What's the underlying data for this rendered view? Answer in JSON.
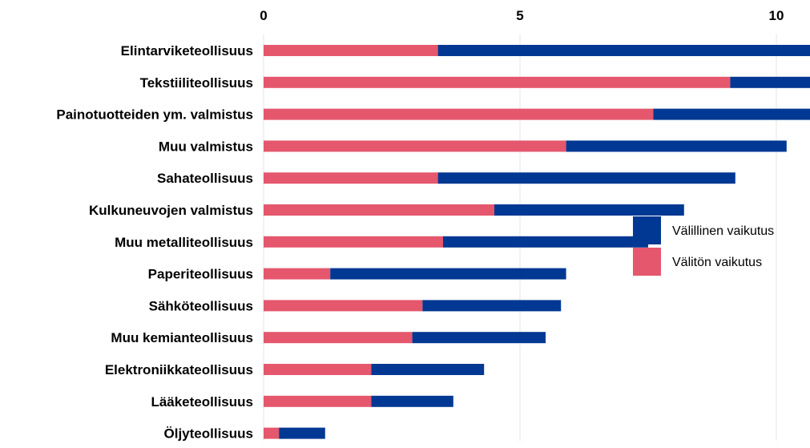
{
  "chart_data": {
    "type": "bar",
    "orientation": "horizontal",
    "stacked": true,
    "categories": [
      "Elintarviketeollisuus",
      "Tekstiiliteollisuus",
      "Painotuotteiden ym. valmistus",
      "Muu valmistus",
      "Sahateollisuus",
      "Kulkuneuvojen valmistus",
      "Muu metalliteollisuus",
      "Paperiteollisuus",
      "Sähköteollisuus",
      "Muu kemianteollisuus",
      "Elektroniikkateollisuus",
      "Lääketeollisuus",
      "Öljyteollisuus"
    ],
    "series": [
      {
        "name": "Välitön vaikutus",
        "color": "#e5576d",
        "values": [
          3.4,
          9.1,
          7.6,
          5.9,
          3.4,
          4.5,
          3.5,
          1.3,
          3.1,
          2.9,
          2.1,
          2.1,
          0.3
        ]
      },
      {
        "name": "Välillinen vaikutus",
        "color": "#003893",
        "values": [
          9.5,
          3.2,
          4.6,
          4.3,
          5.8,
          3.7,
          4.0,
          4.6,
          2.7,
          2.6,
          2.2,
          1.6,
          0.9
        ]
      }
    ],
    "xlim": [
      0,
      13
    ],
    "x_ticks": [
      "0",
      "5",
      "10"
    ],
    "x_tick_values": [
      0,
      5,
      10
    ],
    "x_axis_position": "top",
    "grid": true,
    "grid_color": "#e6e6e6",
    "legend": {
      "position": "right",
      "items": [
        "Välillinen vaikutus",
        "Välitön vaikutus"
      ]
    },
    "title": "",
    "xlabel": "",
    "ylabel": ""
  }
}
